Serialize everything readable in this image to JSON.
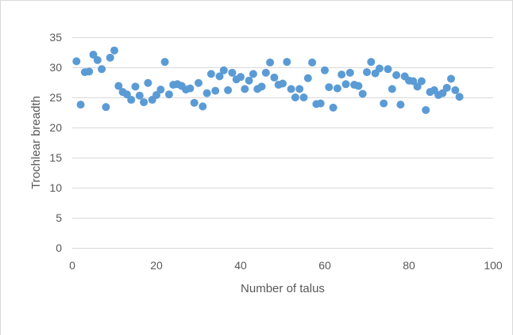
{
  "chart_data": {
    "type": "scatter",
    "title": "",
    "xlabel": "Number of talus",
    "ylabel": "Trochlear breadth",
    "xlim": [
      0,
      100
    ],
    "ylim": [
      0,
      35
    ],
    "xticks": [
      0,
      20,
      40,
      60,
      80,
      100
    ],
    "yticks": [
      0,
      5,
      10,
      15,
      20,
      25,
      30,
      35
    ],
    "grid": "horizontal",
    "legend": "none",
    "marker_color": "#5B9BD5",
    "gridline_color": "#D9D9D9",
    "series": [
      {
        "points": [
          [
            1,
            31.0
          ],
          [
            2,
            23.8
          ],
          [
            3,
            29.2
          ],
          [
            4,
            29.3
          ],
          [
            5,
            32.1
          ],
          [
            6,
            31.2
          ],
          [
            7,
            29.7
          ],
          [
            8,
            23.4
          ],
          [
            9,
            31.6
          ],
          [
            10,
            32.8
          ],
          [
            11,
            26.9
          ],
          [
            12,
            25.9
          ],
          [
            13,
            25.5
          ],
          [
            14,
            24.6
          ],
          [
            15,
            26.8
          ],
          [
            16,
            25.3
          ],
          [
            17,
            24.2
          ],
          [
            18,
            27.4
          ],
          [
            19,
            24.6
          ],
          [
            20,
            25.4
          ],
          [
            21,
            26.3
          ],
          [
            22,
            30.9
          ],
          [
            23,
            25.5
          ],
          [
            24,
            27.1
          ],
          [
            25,
            27.2
          ],
          [
            26,
            26.9
          ],
          [
            27,
            26.3
          ],
          [
            28,
            26.5
          ],
          [
            29,
            24.1
          ],
          [
            30,
            27.4
          ],
          [
            31,
            23.5
          ],
          [
            32,
            25.7
          ],
          [
            33,
            28.9
          ],
          [
            34,
            26.1
          ],
          [
            35,
            28.5
          ],
          [
            36,
            29.5
          ],
          [
            37,
            26.2
          ],
          [
            38,
            29.1
          ],
          [
            39,
            28.0
          ],
          [
            40,
            28.4
          ],
          [
            41,
            26.4
          ],
          [
            42,
            27.8
          ],
          [
            43,
            28.9
          ],
          [
            44,
            26.4
          ],
          [
            45,
            26.8
          ],
          [
            46,
            29.1
          ],
          [
            47,
            30.8
          ],
          [
            48,
            28.3
          ],
          [
            49,
            27.1
          ],
          [
            50,
            27.3
          ],
          [
            51,
            30.9
          ],
          [
            52,
            26.4
          ],
          [
            53,
            25.0
          ],
          [
            54,
            26.4
          ],
          [
            55,
            25.0
          ],
          [
            56,
            28.2
          ],
          [
            57,
            30.8
          ],
          [
            58,
            23.9
          ],
          [
            59,
            24.0
          ],
          [
            60,
            29.5
          ],
          [
            61,
            26.7
          ],
          [
            62,
            23.3
          ],
          [
            63,
            26.5
          ],
          [
            64,
            28.8
          ],
          [
            65,
            27.2
          ],
          [
            66,
            29.1
          ],
          [
            67,
            27.1
          ],
          [
            68,
            26.9
          ],
          [
            69,
            25.6
          ],
          [
            70,
            29.2
          ],
          [
            71,
            30.9
          ],
          [
            72,
            29.0
          ],
          [
            73,
            29.8
          ],
          [
            74,
            24.0
          ],
          [
            75,
            29.7
          ],
          [
            76,
            26.4
          ],
          [
            77,
            28.7
          ],
          [
            78,
            23.8
          ],
          [
            79,
            28.5
          ],
          [
            80,
            27.8
          ],
          [
            81,
            27.7
          ],
          [
            82,
            26.8
          ],
          [
            83,
            27.7
          ],
          [
            84,
            22.9
          ],
          [
            85,
            25.9
          ],
          [
            86,
            26.2
          ],
          [
            87,
            25.4
          ],
          [
            88,
            25.7
          ],
          [
            89,
            26.6
          ],
          [
            90,
            28.1
          ],
          [
            91,
            26.2
          ],
          [
            92,
            25.1
          ]
        ]
      }
    ]
  }
}
